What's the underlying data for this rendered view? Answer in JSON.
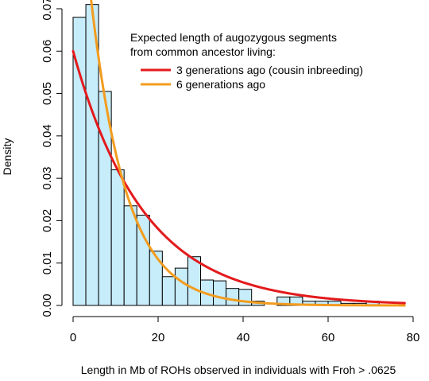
{
  "chart_data": {
    "type": "bar",
    "title": "",
    "xlabel": "Length in Mb of ROHs observed in individuals with Froh > .0625",
    "ylabel": "Density",
    "xlim": [
      0,
      80
    ],
    "ylim": [
      0,
      0.07
    ],
    "x_ticks": [
      "0",
      "20",
      "40",
      "60",
      "80"
    ],
    "y_ticks": [
      "0.00",
      "0.01",
      "0.02",
      "0.03",
      "0.04",
      "0.05",
      "0.06",
      "0.07"
    ],
    "bins": {
      "edges": [
        0,
        3,
        6,
        9,
        12,
        15,
        18,
        21,
        24,
        27,
        30,
        33,
        36,
        39,
        42,
        45,
        48,
        51,
        54,
        57,
        60,
        63,
        66,
        69,
        72,
        75
      ],
      "densities": [
        0.068,
        0.071,
        0.0505,
        0.032,
        0.0235,
        0.0213,
        0.0128,
        0.0068,
        0.0088,
        0.0115,
        0.006,
        0.0058,
        0.004,
        0.0038,
        0.001,
        0.0,
        0.002,
        0.002,
        0.001,
        0.001,
        0.001,
        0.0005,
        0.0005,
        0.001,
        0.0
      ]
    },
    "bar_fill": "#c7ecfa",
    "bar_stroke": "#000000",
    "legend": {
      "title_lines": [
        "Expected length of augozygous segments",
        "from common ancestor living:"
      ],
      "position": "top-right"
    },
    "series": [
      {
        "name": "3 generations ago (cousin inbreeding)",
        "color": "#e31a1c",
        "curve": "exponential",
        "rate": 0.06,
        "x_range": [
          0,
          78
        ]
      },
      {
        "name": "6 generations ago",
        "color": "#f39c1f",
        "curve": "exponential",
        "rate": 0.12,
        "x_range": [
          0,
          78
        ]
      }
    ]
  }
}
